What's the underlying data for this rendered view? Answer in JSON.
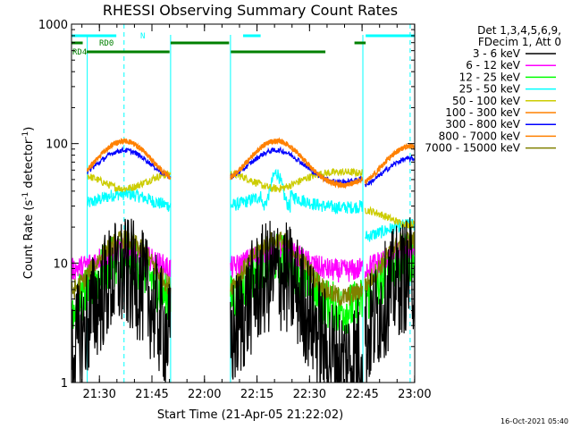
{
  "chart_data": {
    "type": "line",
    "title": "RHESSI Observing Summary Count Rates",
    "xlabel": "Start Time (21-Apr-05 21:22:02)",
    "ylabel_main": "Count Rate (s",
    "ylabel_sup1": "-1",
    "ylabel_mid": " detector",
    "ylabel_sup2": "-1",
    "ylabel_end": ")",
    "yscale": "log",
    "ylim": [
      1,
      1000
    ],
    "xlim_minutes": [
      0,
      98
    ],
    "x_ticks": [
      {
        "label": "21:30",
        "t": 7.97
      },
      {
        "label": "21:45",
        "t": 22.97
      },
      {
        "label": "22:00",
        "t": 37.97
      },
      {
        "label": "22:15",
        "t": 52.97
      },
      {
        "label": "22:30",
        "t": 67.97
      },
      {
        "label": "22:45",
        "t": 82.97
      },
      {
        "label": "23:00",
        "t": 97.97
      }
    ],
    "y_ticks": [
      {
        "label": "1",
        "v": 1
      },
      {
        "label": "10",
        "v": 10
      },
      {
        "label": "100",
        "v": 100
      },
      {
        "label": "1000",
        "v": 1000
      }
    ],
    "legend": {
      "header1": "Det 1,3,4,5,6,9,",
      "header2": "FDecim 1, Att 0",
      "placement": "right"
    },
    "series": [
      {
        "name": "3 - 6 keV",
        "color": "#000000",
        "base": 1.4,
        "peak": 8.0,
        "noise": 0.45,
        "jump": 1.0
      },
      {
        "name": "6 - 12 keV",
        "color": "#ff00ff",
        "base": 8.5,
        "peak": 13.0,
        "noise": 0.09,
        "jump": 1.0
      },
      {
        "name": "12 - 25 keV",
        "color": "#00ff00",
        "base": 4.0,
        "peak": 11.0,
        "noise": 0.2,
        "jump": 1.0
      },
      {
        "name": "25 - 50 keV",
        "color": "#00ffff",
        "base": 29.0,
        "peak": 38.0,
        "noise": 0.05,
        "jump": 0.55
      },
      {
        "name": "50 - 100 keV",
        "color": "#cccc00",
        "base": 58.0,
        "peak": 42.0,
        "noise": 0.03,
        "jump": 0.5
      },
      {
        "name": "100 - 300 keV",
        "color": "#ff8000",
        "base": 44.0,
        "peak": 105.0,
        "noise": 0.02,
        "jump": 0.9
      },
      {
        "name": "300 - 800 keV",
        "color": "#0000ff",
        "base": 47.0,
        "peak": 88.0,
        "noise": 0.02,
        "jump": 0.85
      },
      {
        "name": "800 - 7000 keV",
        "color": "#ff8000",
        "base": 44.0,
        "peak": 105.0,
        "noise": 0.02,
        "jump": 0.9
      },
      {
        "name": "7000 - 15000 keV",
        "color": "#808000",
        "base": 5.0,
        "peak": 15.5,
        "noise": 0.08,
        "jump": 1.0
      }
    ],
    "legend_entries": [
      {
        "name": "3 - 6 keV",
        "color": "#000000"
      },
      {
        "name": "6 - 12 keV",
        "color": "#ff00ff"
      },
      {
        "name": "12 - 25 keV",
        "color": "#00ff00"
      },
      {
        "name": "25 - 50 keV",
        "color": "#00ffff"
      },
      {
        "name": "50 - 100 keV",
        "color": "#cccc00"
      },
      {
        "name": "100 - 300 keV",
        "color": "#ff8000"
      },
      {
        "name": "300 - 800 keV",
        "color": "#0000ff"
      },
      {
        "name": "800 - 7000 keV",
        "color": "#ff8000"
      },
      {
        "name": "7000 - 15000 keV",
        "color": "#808000"
      }
    ],
    "flag_bars": [
      {
        "label": "N",
        "color": "#00ffff",
        "segments": [
          [
            0,
            12.8
          ],
          [
            49,
            54
          ],
          [
            84,
            98
          ]
        ]
      },
      {
        "label": "RD0",
        "color": "#008000",
        "segments": [
          [
            0,
            3.2
          ],
          [
            28.3,
            45
          ],
          [
            80.8,
            84
          ]
        ]
      },
      {
        "label": "RD4",
        "color": "#008000",
        "segments": [
          [
            4.3,
            28.0
          ],
          [
            45.5,
            72.5
          ]
        ]
      }
    ],
    "orbit_boundaries_minutes": [
      4.5,
      28.3,
      45.4,
      83.2
    ],
    "peak_markers_minutes": [
      15.0,
      96.7
    ],
    "timestamp": "16-Oct-2021 05:40"
  }
}
